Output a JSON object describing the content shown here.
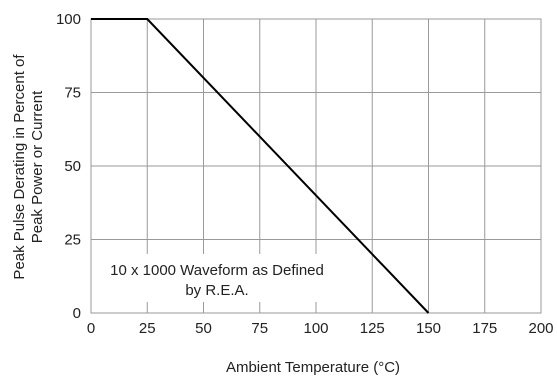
{
  "chart_data": {
    "type": "line",
    "title": "",
    "xlabel": "Ambient Temperature (°C)",
    "ylabel_lines": [
      "Peak Pulse Derating in Percent of",
      "Peak Power or Current"
    ],
    "xlim": [
      0,
      200
    ],
    "ylim": [
      0,
      100
    ],
    "xticks": [
      0,
      25,
      50,
      75,
      100,
      125,
      150,
      175,
      200
    ],
    "yticks": [
      0,
      25,
      50,
      75,
      100
    ],
    "grid": true,
    "series": [
      {
        "x": [
          0,
          25,
          150
        ],
        "y": [
          100,
          100,
          0
        ]
      }
    ],
    "annotation_lines": [
      "10 x 1000 Waveform as Defined",
      "by R.E.A."
    ],
    "colors": {
      "line": "#000000",
      "grid": "#9a9a9a",
      "text": "#222222"
    }
  }
}
